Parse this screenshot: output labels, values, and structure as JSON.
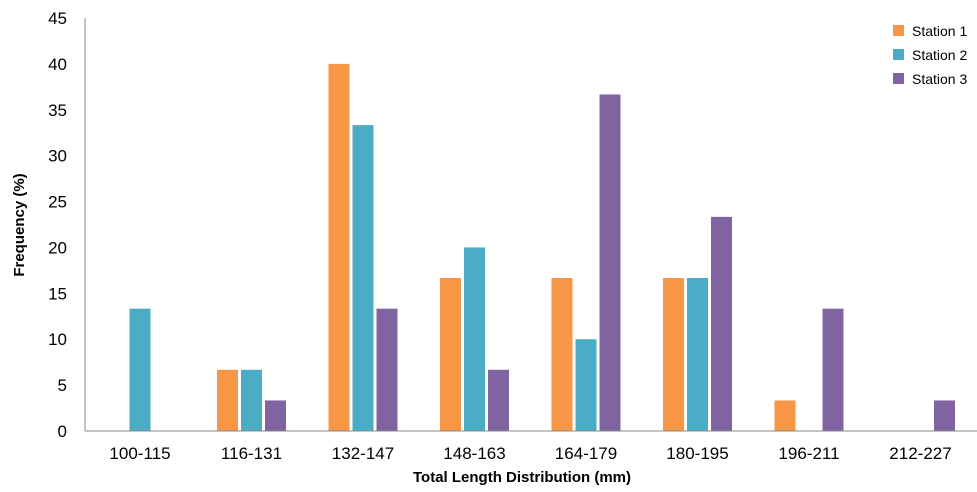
{
  "chart_data": {
    "type": "bar",
    "title": "",
    "xlabel": "Total Length Distribution (mm)",
    "ylabel": "Frequency (%)",
    "ylim": [
      0,
      45
    ],
    "yticks": [
      "0",
      "5",
      "10",
      "15",
      "20",
      "25",
      "30",
      "35",
      "40",
      "45"
    ],
    "categories": [
      "100-115",
      "116-131",
      "132-147",
      "148-163",
      "164-179",
      "180-195",
      "196-211",
      "212-227"
    ],
    "series": [
      {
        "name": "Station 1",
        "color": "#F79646",
        "values": [
          0,
          6.67,
          40,
          16.67,
          16.67,
          16.67,
          3.33,
          0
        ]
      },
      {
        "name": "Station 2",
        "color": "#4BACC6",
        "values": [
          13.33,
          6.67,
          33.33,
          20,
          10,
          16.67,
          0,
          0
        ]
      },
      {
        "name": "Station 3",
        "color": "#8064A2",
        "values": [
          0,
          3.33,
          13.33,
          6.67,
          36.67,
          23.33,
          13.33,
          3.33
        ]
      }
    ],
    "grid": false,
    "legend_position": "top-right"
  }
}
